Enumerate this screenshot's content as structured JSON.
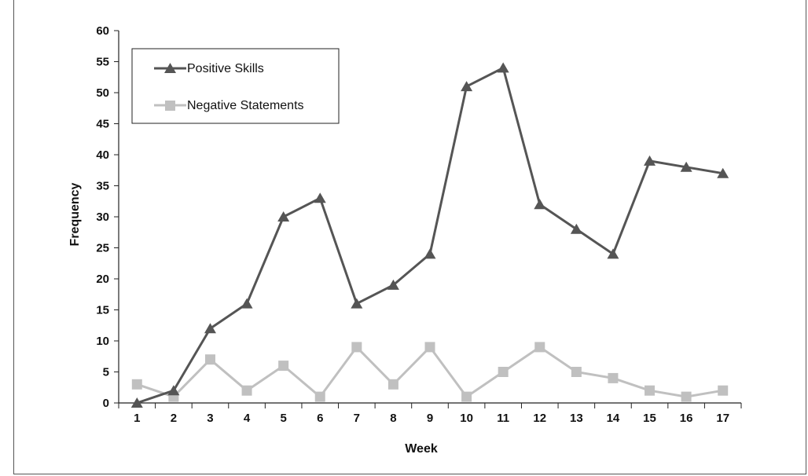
{
  "chart_data": {
    "type": "line",
    "title": "",
    "xlabel": "Week",
    "ylabel": "Frequency",
    "x": [
      1,
      2,
      3,
      4,
      5,
      6,
      7,
      8,
      9,
      10,
      11,
      12,
      13,
      14,
      15,
      16,
      17
    ],
    "ylim": [
      0,
      60
    ],
    "yticks": [
      0,
      5,
      10,
      15,
      20,
      25,
      30,
      35,
      40,
      45,
      50,
      55,
      60
    ],
    "grid": false,
    "legend_position": "top-left",
    "series": [
      {
        "name": "Positive Skills",
        "marker": "triangle",
        "color": "#555555",
        "values": [
          0,
          2,
          12,
          16,
          30,
          33,
          16,
          19,
          24,
          51,
          54,
          32,
          28,
          24,
          39,
          38,
          37
        ]
      },
      {
        "name": "Negative Statements",
        "marker": "square",
        "color": "#c0c0c0",
        "values": [
          3,
          1,
          7,
          2,
          6,
          1,
          9,
          3,
          9,
          1,
          5,
          9,
          5,
          4,
          2,
          1,
          2
        ]
      }
    ]
  }
}
